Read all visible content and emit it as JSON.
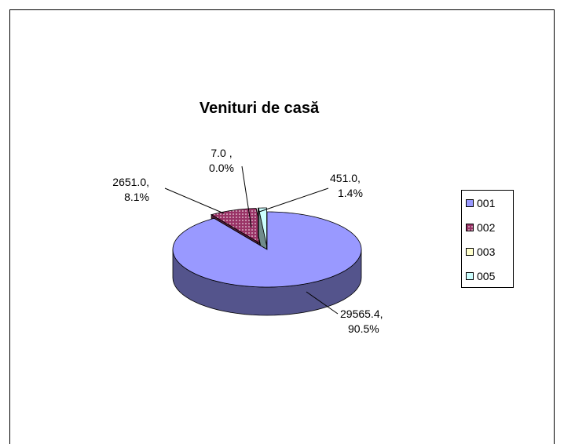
{
  "chart_data": {
    "type": "pie3d",
    "title": "Venituri de casă",
    "categories": [
      "001",
      "002",
      "003",
      "005"
    ],
    "values": [
      29565.4,
      2651.0,
      7.0,
      451.0
    ],
    "value_labels": [
      [
        "29565.4,",
        "90.5%"
      ],
      [
        "2651.0,",
        "8.1%"
      ],
      [
        "7.0 ,",
        "0.0%"
      ],
      [
        "451.0,",
        "1.4%"
      ]
    ],
    "colors": [
      "#9999ff",
      "#993366",
      "#ffffcc",
      "#ccffff"
    ],
    "legend": "right"
  }
}
